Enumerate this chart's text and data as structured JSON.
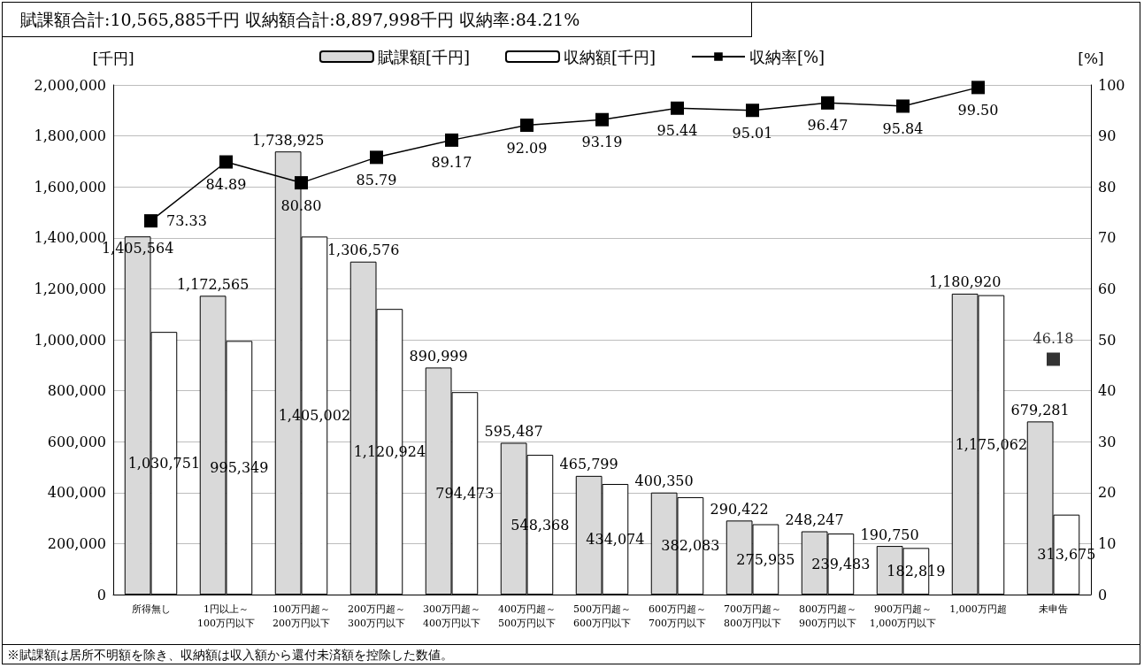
{
  "chart_data": {
    "type": "bar",
    "title": "賦課額合計:10,565,885千円  収納額合計:8,897,998千円  収納率:84.21%",
    "annotations": [
      "※賦課額は居所不明額を除き、収納額は収入額から還付未済額を控除した数値。"
    ],
    "ylabel": "[千円]",
    "y2label": "[%]",
    "categories": [
      "所得無し",
      "1円以上～\n100万円以下",
      "100万円超～\n200万円以下",
      "200万円超～\n300万円以下",
      "300万円超～\n400万円以下",
      "400万円超～\n500万円以下",
      "500万円超～\n600万円以下",
      "600万円超～\n700万円以下",
      "700万円超～\n800万円以下",
      "800万円超～\n900万円以下",
      "900万円超～\n1,000万円以下",
      "1,000万円超",
      "未申告"
    ],
    "series": [
      {
        "name": "賦課額[千円]",
        "color": "#d9d9d9",
        "values": [
          1405564,
          1172565,
          1738925,
          1306576,
          890999,
          595487,
          465799,
          400350,
          290422,
          248247,
          190750,
          1180920,
          679281
        ],
        "value_labels": [
          "1,405,564",
          "1,172,565",
          "1,738,925",
          "1,306,576",
          "890,999",
          "595,487",
          "465,799",
          "400,350",
          "290,422",
          "248,247",
          "190,750",
          "1,180,920",
          "679,281"
        ]
      },
      {
        "name": "収納額[千円]",
        "color": "#ffffff",
        "values": [
          1030751,
          995349,
          1405002,
          1120924,
          794473,
          548368,
          434074,
          382083,
          275935,
          239483,
          182819,
          1175062,
          313675
        ],
        "value_labels": [
          "1,030,751",
          "995,349",
          "1,405,002",
          "1,120,924",
          "794,473",
          "548,368",
          "434,074",
          "382,083",
          "275,935",
          "239,483",
          "182,819",
          "1,175,062",
          "313,675"
        ]
      },
      {
        "name": "収納率[%]",
        "type": "line",
        "axis": "y2",
        "color": "#000000",
        "marker": "square",
        "values": [
          73.33,
          84.89,
          80.8,
          85.79,
          89.17,
          92.09,
          93.19,
          95.44,
          95.01,
          96.47,
          95.84,
          99.5,
          null
        ],
        "value_labels": [
          "73.33",
          "84.89",
          "80.80",
          "85.79",
          "89.17",
          "92.09",
          "93.19",
          "95.44",
          "95.01",
          "96.47",
          "95.84",
          "99.50",
          null
        ]
      },
      {
        "type": "scatter",
        "axis": "y2",
        "color": "#000000",
        "marker": "square",
        "values": [
          null,
          null,
          null,
          null,
          null,
          null,
          null,
          null,
          null,
          null,
          null,
          null,
          46.18
        ],
        "value_labels": [
          null,
          null,
          null,
          null,
          null,
          null,
          null,
          null,
          null,
          null,
          null,
          null,
          "46.18"
        ]
      }
    ],
    "ylim": [
      0,
      2000000
    ],
    "yticks": [
      0,
      {
        "value": 200000,
        "label": "200,000"
      },
      {
        "value": 400000,
        "label": "400,000"
      },
      {
        "value": 600000,
        "label": "600,000"
      },
      {
        "value": 800000,
        "label": "800,000"
      },
      {
        "value": 1000000,
        "label": "1,000,000"
      },
      {
        "value": 1200000,
        "label": "1,200,000"
      },
      {
        "value": 1400000,
        "label": "1,400,000"
      },
      {
        "value": 1600000,
        "label": "1,600,000"
      },
      {
        "value": 1800000,
        "label": "1,800,000"
      },
      {
        "value": 2000000,
        "label": "2,000,000"
      }
    ],
    "y2lim": [
      0,
      100
    ],
    "y2ticks": [
      0,
      10,
      20,
      30,
      40,
      50,
      60,
      70,
      80,
      90,
      100
    ],
    "grid": "y",
    "legend": "top"
  }
}
